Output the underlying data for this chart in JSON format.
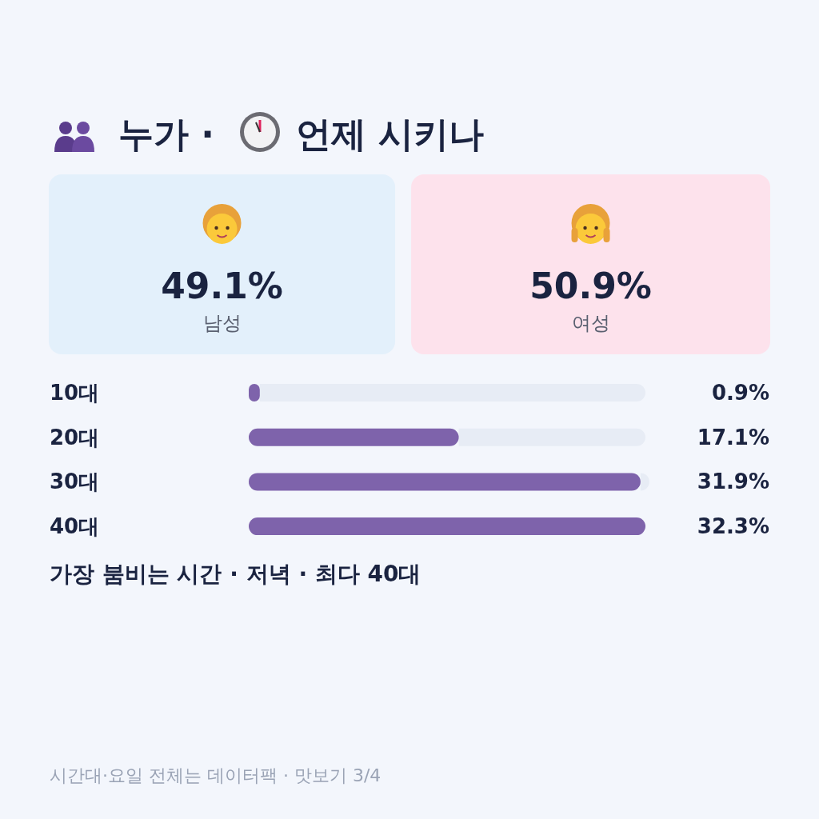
{
  "chart_data": [
    {
      "type": "other",
      "title": "누가 · 언제 시키나",
      "categories": [
        "남성",
        "여성"
      ],
      "values": [
        49.1,
        50.9
      ],
      "value_labels": [
        "49.1%",
        "50.9%"
      ],
      "colors": [
        "#e3f0fb",
        "#fde2ec"
      ]
    },
    {
      "type": "bar",
      "orientation": "horizontal",
      "categories": [
        "10대",
        "20대",
        "30대",
        "40대"
      ],
      "values": [
        0.9,
        17.1,
        31.9,
        32.3
      ],
      "value_labels": [
        "0.9%",
        "17.1%",
        "31.9%",
        "32.3%"
      ],
      "color": "#7e63ab",
      "annotations": [
        "가장 붐비는 시간 · 저녁 · 최다 40대",
        "시간대·요일 전체는 데이터팩 · 맛보기 3/4"
      ]
    }
  ]
}
